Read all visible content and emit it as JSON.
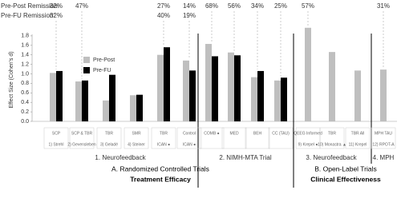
{
  "chart_data": {
    "type": "bar",
    "ylabel": "Effect Size (Cohen's d)",
    "ylim": [
      0,
      2.0
    ],
    "yticks": [
      {
        "value": 0,
        "label": "0.0"
      },
      {
        "value": 0.2,
        "label": "0.2"
      },
      {
        "value": 0.4,
        "label": "0.4"
      },
      {
        "value": 0.6,
        "label": "0.6"
      },
      {
        "value": 0.8,
        "label": "0.8"
      },
      {
        "value": 1.0,
        "label": "1.0"
      },
      {
        "value": 1.2,
        "label": "1.2"
      },
      {
        "value": 1.4,
        "label": "1.4"
      },
      {
        "value": 1.6,
        "label": "1.6"
      },
      {
        "value": 1.8,
        "label": "1.8"
      }
    ],
    "categories": [
      "SCP",
      "SCP & TBR",
      "TBR",
      "SMR",
      "TBR",
      "Control",
      "COMB ●",
      "MED",
      "BEH",
      "CC (TAU)",
      "QEEG Informed",
      "TBR",
      "TBR All",
      "MPH TAU"
    ],
    "category_sublabels": [
      "1) Strehl",
      "2) Gevensleben",
      "3) Geladé",
      "4) Steiner",
      "ICAN ●",
      "ICAN ●",
      null,
      null,
      null,
      null,
      "9) Krepel ●",
      "10) Monastra ▲",
      "11) Krepel",
      "12) RPOT-A"
    ],
    "series": [
      {
        "name": "Pre-Post",
        "color": "#bfbfbf",
        "values": [
          1.02,
          0.84,
          0.44,
          0.55,
          1.4,
          1.28,
          1.63,
          1.45,
          0.93,
          0.86,
          1.97,
          1.46,
          1.07,
          1.09
        ]
      },
      {
        "name": "Pre-FU",
        "color": "#000000",
        "values": [
          1.06,
          0.86,
          0.98,
          0.56,
          1.56,
          1.07,
          1.37,
          1.39,
          1.06,
          0.92,
          null,
          null,
          null,
          null
        ]
      }
    ],
    "remission": [
      {
        "label": "Pre-Post Remission:",
        "values": [
          32,
          47,
          null,
          null,
          27,
          14,
          68,
          56,
          34,
          25,
          57,
          null,
          null,
          31
        ],
        "value_labels": [
          "32%",
          "47%",
          null,
          null,
          "27%",
          "14%",
          "68%",
          "56%",
          "34%",
          "25%",
          "57%",
          null,
          null,
          "31%"
        ]
      },
      {
        "label": "Pre-FU Remission:",
        "values": [
          32,
          null,
          null,
          null,
          40,
          19,
          null,
          null,
          null,
          null,
          null,
          null,
          null,
          null
        ],
        "value_labels": [
          "32%",
          null,
          null,
          null,
          "40%",
          "19%",
          null,
          null,
          null,
          null,
          null,
          null,
          null,
          null
        ]
      }
    ],
    "groups": [
      "1. Neurofeedback",
      "2. NIMH-MTA Trial",
      "3. Neurofeedback",
      "4. MPH"
    ],
    "sections": [
      {
        "title": "A. Randomized Controlled Trials",
        "subtitle": "Treatment Efficacy"
      },
      {
        "title": "B. Open-Label Trials",
        "subtitle": "Clinical Effectiveness"
      }
    ]
  }
}
